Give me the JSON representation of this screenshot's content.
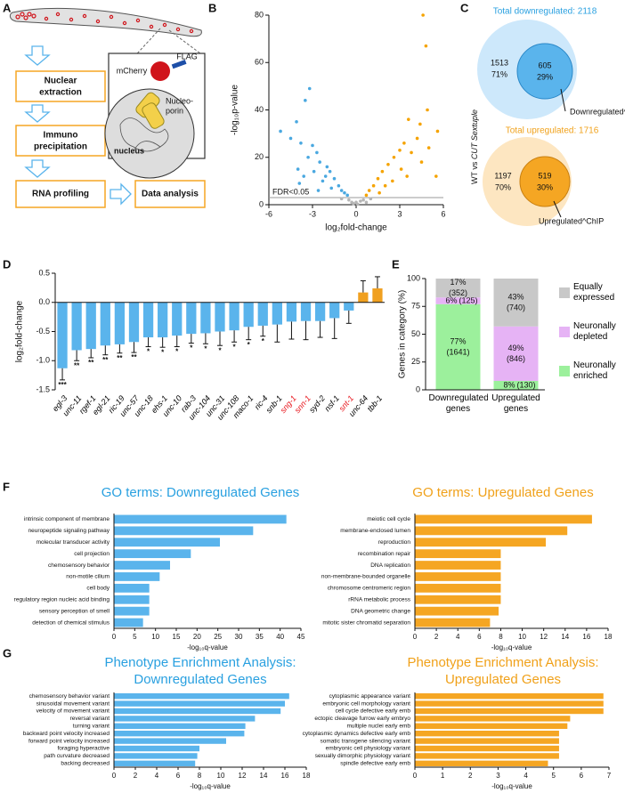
{
  "panel_labels": [
    "A",
    "B",
    "C",
    "D",
    "E",
    "F",
    "G"
  ],
  "workflow": {
    "steps": [
      [
        "Nuclear",
        "extraction"
      ],
      [
        "Immuno",
        "precipitation"
      ],
      [
        "RNA profiling"
      ],
      [
        "Data analysis"
      ]
    ],
    "mcherry": "mCherry",
    "flag": "FLAG",
    "nucleoporin": [
      "Nucleo-",
      "porin"
    ],
    "nucleus": "nucleus"
  },
  "venn": {
    "side_label_prefix": "WT vs",
    "side_label_italic": "CUT Sextuple",
    "down": {
      "title": "Total downregulated: 2118",
      "outer_count": "1513",
      "outer_pct": "71%",
      "inner_count": "605",
      "inner_pct": "29%",
      "callout": "Downregulated^ChIP"
    },
    "up": {
      "title": "Total upregulated: 1716",
      "outer_count": "1197",
      "outer_pct": "70%",
      "inner_count": "519",
      "inner_pct": "30%",
      "callout": "Upregulated^ChIP"
    }
  },
  "chart_data": [
    {
      "type": "scatter",
      "x_label": "log₂fold-change",
      "y_label": "-log₁₀p-value",
      "annotation": "FDR<0.05",
      "threshold": 3,
      "xlim": [
        -6,
        6
      ],
      "xticks": [
        -6,
        -3,
        0,
        3,
        6
      ],
      "ylim": [
        0,
        80
      ],
      "yticks": [
        0,
        20,
        40,
        60,
        80
      ],
      "series": [
        {
          "color": "#b5b5b5",
          "x": [
            -0.5,
            0,
            0.5,
            -0.2,
            0.3,
            1,
            -1,
            0.1,
            -0.3,
            0.7
          ],
          "values": [
            2,
            1,
            2,
            0.5,
            1.5,
            2.5,
            2.5,
            0.2,
            1,
            1
          ]
        },
        {
          "color": "#4aa8e0",
          "x": [
            -3.2,
            -3.5,
            -4.1,
            -5.2,
            -4.5,
            -3.8,
            -3,
            -2.7,
            -3.3,
            -2.5,
            -2,
            -1.8,
            -2.9,
            -3.6,
            -1.5,
            -2.3,
            -1.2,
            -1,
            -0.8,
            -1.7,
            -4,
            -2.1,
            -0.6,
            -3.9,
            -2.6
          ],
          "values": [
            49,
            44,
            35,
            31,
            28,
            26,
            25,
            22,
            20,
            18,
            16,
            14,
            14,
            12,
            11,
            10,
            8,
            6,
            5,
            7,
            15,
            12,
            4,
            9,
            6
          ]
        },
        {
          "color": "#f5a300",
          "x": [
            4.6,
            4.8,
            4.9,
            3.6,
            4.4,
            5.6,
            4.2,
            3.3,
            5,
            3,
            3.8,
            2.6,
            2.2,
            4.5,
            1.8,
            3.1,
            1.5,
            2.5,
            1.2,
            0.9,
            0.7,
            3.5,
            2,
            5.5,
            1.6
          ],
          "values": [
            80,
            67,
            40,
            36,
            34,
            31,
            28,
            26,
            24,
            23,
            22,
            20,
            17,
            18,
            14,
            15,
            11,
            10,
            8,
            6,
            4,
            12,
            8,
            12,
            5
          ]
        }
      ]
    },
    {
      "type": "bar",
      "y_label": "log₂fold-change",
      "categories": [
        "egl-3",
        "unc-11",
        "rgef-1",
        "egl-21",
        "ric-19",
        "unc-57",
        "unc-18",
        "ehs-1",
        "unc-10",
        "rab-3",
        "unc-104",
        "unc-31",
        "unc-108",
        "maco-1",
        "ric-4",
        "snb-1",
        "sng-1",
        "snn-1",
        "syd-2",
        "nsf-1",
        "snt-1",
        "unc-64",
        "tbb-1"
      ],
      "label_colors": [
        "#000",
        "#000",
        "#000",
        "#000",
        "#000",
        "#000",
        "#000",
        "#000",
        "#000",
        "#000",
        "#000",
        "#000",
        "#000",
        "#000",
        "#000",
        "#000",
        "#e8141b",
        "#e8141b",
        "#000",
        "#000",
        "#e8141b",
        "#000",
        "#000"
      ],
      "values": [
        -1.13,
        -0.82,
        -0.8,
        -0.74,
        -0.72,
        -0.68,
        -0.6,
        -0.6,
        -0.57,
        -0.54,
        -0.53,
        -0.5,
        -0.48,
        -0.42,
        -0.4,
        -0.38,
        -0.33,
        -0.32,
        -0.32,
        -0.27,
        -0.14,
        0.17,
        0.24
      ],
      "errors": [
        0.2,
        0.18,
        0.15,
        0.16,
        0.15,
        0.18,
        0.16,
        0.17,
        0.19,
        0.16,
        0.18,
        0.24,
        0.2,
        0.22,
        0.18,
        0.3,
        0.3,
        0.32,
        0.28,
        0.35,
        0.22,
        0.2,
        0.2
      ],
      "significance": [
        "***",
        "**",
        "**",
        "**",
        "**",
        "**",
        "*",
        "*",
        "*",
        "*",
        "*",
        "*",
        "*",
        "*",
        "*",
        null,
        null,
        null,
        null,
        null,
        null,
        null,
        null
      ],
      "colors": [
        "#5ab4ec",
        "#5ab4ec",
        "#5ab4ec",
        "#5ab4ec",
        "#5ab4ec",
        "#5ab4ec",
        "#5ab4ec",
        "#5ab4ec",
        "#5ab4ec",
        "#5ab4ec",
        "#5ab4ec",
        "#5ab4ec",
        "#5ab4ec",
        "#5ab4ec",
        "#5ab4ec",
        "#5ab4ec",
        "#5ab4ec",
        "#5ab4ec",
        "#5ab4ec",
        "#5ab4ec",
        "#5ab4ec",
        "#f0a020",
        "#f0a020"
      ],
      "ylim": [
        -1.5,
        0.5
      ],
      "yticks": [
        -1.5,
        {
          "value": -1,
          "label": "-1.0"
        },
        -0.5,
        {
          "value": 0,
          "label": "0.0"
        },
        0.5
      ]
    },
    {
      "type": "stacked_bar",
      "y_label": "Genes in category (%)",
      "categories": [
        "Downregulated genes",
        "Upregulated genes"
      ],
      "series": [
        {
          "name": "Neuronally enriched",
          "color": "#9cf09c",
          "values": [
            77,
            8
          ],
          "value_labels": [
            "77%",
            "8%"
          ],
          "count_labels": [
            "(1641)",
            "(130)"
          ]
        },
        {
          "name": "Neuronally depleted",
          "color": "#e6b3f5",
          "values": [
            6,
            49
          ],
          "value_labels": [
            "6%",
            "49%"
          ],
          "count_labels": [
            "(125)",
            "(846)"
          ]
        },
        {
          "name": "Equally expressed",
          "color": "#c8c8c8",
          "values": [
            17,
            43
          ],
          "value_labels": [
            "17%",
            "43%"
          ],
          "count_labels": [
            "(352)",
            "(740)"
          ]
        }
      ],
      "ylim": [
        0,
        100
      ],
      "yticks": [
        0,
        25,
        50,
        75,
        100
      ],
      "legend": "right"
    },
    {
      "type": "hbar",
      "title": [
        "GO terms: Downregulated Genes"
      ],
      "title_color": "#29a0e0",
      "color": "#5ab4ec",
      "x_label": "-log₁₀q-value",
      "categories": [
        "intrinsic component of membrane",
        "neuropeptide signaling pathway",
        "molecular transducer activity",
        "cell projection",
        "chemosensory behavior",
        "non-motile cilium",
        "cell body",
        "regulatory region nucleic acid binding",
        "sensory perception of smell",
        "detection of chemical stimulus"
      ],
      "values": [
        41.5,
        33.5,
        25.5,
        18.5,
        13.5,
        11,
        8.5,
        8.5,
        8.5,
        7
      ],
      "xlim": [
        0,
        45
      ],
      "xticks": [
        0,
        5,
        10,
        15,
        20,
        25,
        30,
        35,
        40,
        45
      ]
    },
    {
      "type": "hbar",
      "title": [
        "GO terms: Upregulated Genes"
      ],
      "title_color": "#f0a11a",
      "color": "#f5a623",
      "x_label": "-log₁₀q-value",
      "categories": [
        "meiotic cell cycle",
        "membrane-enclosed lumen",
        "reproduction",
        "recombination repair",
        "DNA replication",
        "non-membrane-bounded organelle",
        "chromosome centromeric region",
        "rRNA metabolic process",
        "DNA geometric change",
        "mitotic sister chromatid separation"
      ],
      "values": [
        16.5,
        14.2,
        12.2,
        8,
        8,
        8,
        8,
        8,
        7.8,
        7
      ],
      "xlim": [
        0,
        18
      ],
      "xticks": [
        0,
        2,
        4,
        6,
        8,
        10,
        12,
        14,
        16,
        18
      ]
    },
    {
      "type": "hbar",
      "title": [
        "Phenotype Enrichment Analysis:",
        "Downregulated Genes"
      ],
      "title_color": "#29a0e0",
      "color": "#5ab4ec",
      "x_label": "-log₁₀q-value",
      "categories": [
        "chemosensory behavior variant",
        "sinusoidal movement variant",
        "velocity of movement variant",
        "reversal variant",
        "turning variant",
        "backward point velocity increased",
        "forward point velocity increased",
        "foraging hyperactive",
        "path curvature decreased",
        "backing decreased"
      ],
      "values": [
        16.4,
        16,
        15.6,
        13.2,
        12.3,
        12.2,
        10.5,
        8,
        7.8,
        7.6
      ],
      "xlim": [
        0,
        18
      ],
      "xticks": [
        0,
        2,
        4,
        6,
        8,
        10,
        12,
        14,
        16,
        18
      ]
    },
    {
      "type": "hbar",
      "title": [
        "Phenotype Enrichment Analysis:",
        "Upregulated Genes"
      ],
      "title_color": "#f0a11a",
      "color": "#f5a623",
      "x_label": "-log₁₀q-value",
      "categories": [
        "cytoplasmic appearance variant",
        "embryonic cell morphology variant",
        "cell cycle defective early emb",
        "ectopic cleavage furrow early embryo",
        "multiple nuclei early emb",
        "cytoplasmic dynamics defective early emb",
        "somatic transgene silencing variant",
        "embryonic cell physiology variant",
        "sexually dimorphic physiology variant",
        "spindle defective early emb"
      ],
      "values": [
        6.8,
        6.8,
        6.8,
        5.6,
        5.5,
        5.2,
        5.2,
        5.2,
        5.2,
        4.8
      ],
      "xlim": [
        0,
        7
      ],
      "xticks": [
        0,
        1,
        2,
        3,
        4,
        5,
        6,
        7
      ]
    }
  ]
}
